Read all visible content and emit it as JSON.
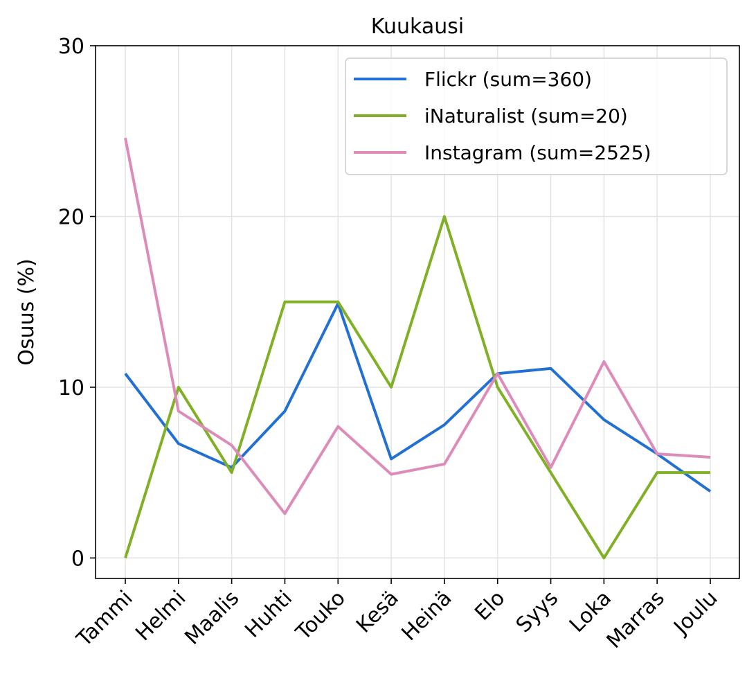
{
  "chart_data": {
    "type": "line",
    "title": "Kuukausi",
    "xlabel": "",
    "ylabel": "Osuus (%)",
    "categories": [
      "Tammi",
      "Helmi",
      "Maalis",
      "Huhti",
      "Touko",
      "Kesä",
      "Heinä",
      "Elo",
      "Syys",
      "Loka",
      "Marras",
      "Joulu"
    ],
    "ylim": [
      -1.2,
      30
    ],
    "yticks": [
      0,
      10,
      20,
      30
    ],
    "grid": true,
    "legend_position": "top-right",
    "series": [
      {
        "name": "Flickr (sum=360)",
        "color": "#2271d2",
        "values": [
          10.8,
          6.7,
          5.3,
          8.6,
          14.9,
          5.8,
          7.8,
          10.8,
          11.1,
          8.1,
          6.1,
          3.9
        ]
      },
      {
        "name": "iNaturalist (sum=20)",
        "color": "#7fb025",
        "values": [
          0,
          10,
          5,
          15,
          15,
          10,
          20,
          10,
          5,
          0,
          5,
          5
        ]
      },
      {
        "name": "Instagram (sum=2525)",
        "color": "#dd8cb9",
        "values": [
          24.6,
          8.6,
          6.6,
          2.6,
          7.7,
          4.9,
          5.5,
          10.8,
          5.3,
          11.5,
          6.1,
          5.9
        ]
      }
    ]
  }
}
